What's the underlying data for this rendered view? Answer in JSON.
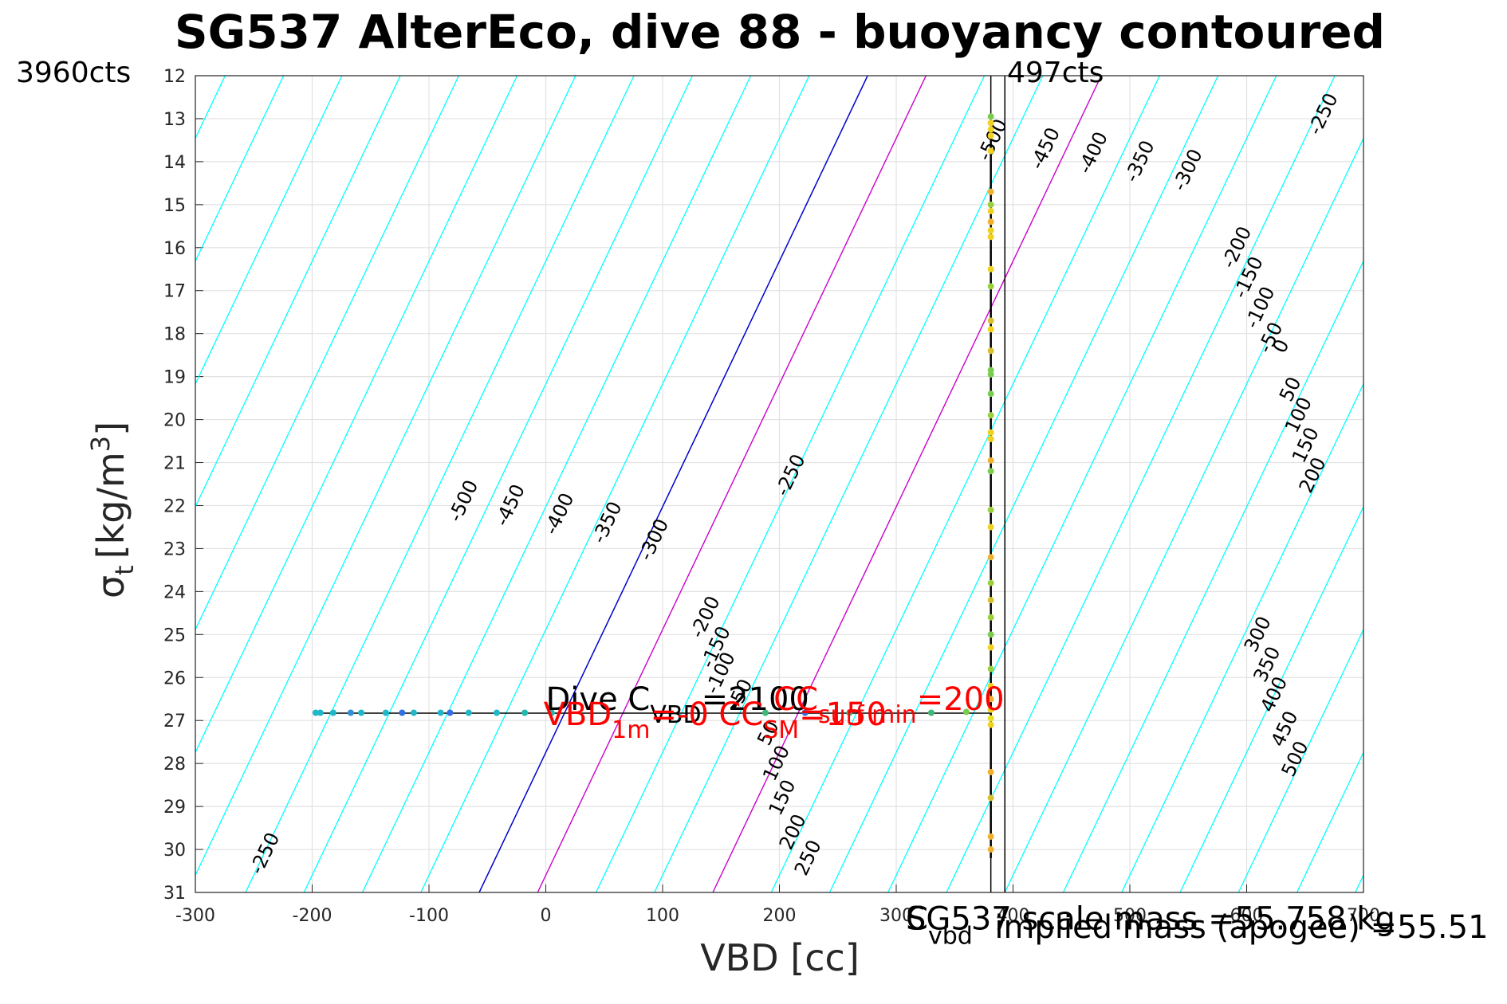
{
  "chart_data": {
    "type": "line",
    "title": "SG537 AlterEco, dive 88 - buoyancy contoured",
    "xlabel": "VBD [cc]",
    "ylabel_base": "σ",
    "ylabel_sub": "t",
    "ylabel_unit": "[kg/m",
    "ylabel_sup": "3",
    "ylabel_end": "]",
    "xlim": [
      -300,
      700
    ],
    "ylim": [
      12,
      31
    ],
    "y_reversed": true,
    "grid": true,
    "xticks": [
      -300,
      -200,
      -100,
      0,
      100,
      200,
      300,
      400,
      500,
      600,
      700
    ],
    "yticks": [
      12,
      13,
      14,
      15,
      16,
      17,
      18,
      19,
      20,
      21,
      22,
      23,
      24,
      25,
      26,
      27,
      28,
      29,
      30,
      31
    ],
    "counts_left": "3960cts",
    "counts_right": "497cts",
    "contour_levels": [
      -500,
      -450,
      -400,
      -350,
      -300,
      -250,
      -200,
      -150,
      -100,
      -50,
      0,
      50,
      100,
      150,
      200,
      250,
      300,
      350,
      400,
      450,
      500
    ],
    "contour_slope_cc_per_sigma": 17.5,
    "contour_spacing_cc": 50,
    "contour_zero_at_x": -57,
    "contour_zero_at_y": 31,
    "colors": {
      "contour": "#00ffff",
      "zero": "#0000cd",
      "highlight": "#cc00cc",
      "annotation": "#ff0000",
      "ink": "#000000"
    },
    "highlight_levels": [
      50,
      200
    ],
    "contour_labels": [
      {
        "level": -500,
        "x": -70,
        "y": 21.9
      },
      {
        "level": -450,
        "x": -30,
        "y": 22.0
      },
      {
        "level": -400,
        "x": 12,
        "y": 22.2
      },
      {
        "level": -350,
        "x": 53,
        "y": 22.4
      },
      {
        "level": -300,
        "x": 93,
        "y": 22.8
      },
      {
        "level": -250,
        "x": 210,
        "y": 21.3
      },
      {
        "level": -250,
        "x": -240,
        "y": 30.1
      },
      {
        "level": -200,
        "x": 137,
        "y": 24.6
      },
      {
        "level": -150,
        "x": 146,
        "y": 25.3
      },
      {
        "level": -100,
        "x": 150,
        "y": 25.9
      },
      {
        "level": -50,
        "x": 167,
        "y": 26.4
      },
      {
        "level": 50,
        "x": 191,
        "y": 27.3
      },
      {
        "level": 100,
        "x": 198,
        "y": 28.0
      },
      {
        "level": 150,
        "x": 203,
        "y": 28.8
      },
      {
        "level": 200,
        "x": 212,
        "y": 29.6
      },
      {
        "level": 250,
        "x": 225,
        "y": 30.2
      },
      {
        "level": -500,
        "x": 383,
        "y": 13.5
      },
      {
        "level": -450,
        "x": 428,
        "y": 13.7
      },
      {
        "level": -400,
        "x": 469,
        "y": 13.8
      },
      {
        "level": -350,
        "x": 509,
        "y": 14.0
      },
      {
        "level": -300,
        "x": 550,
        "y": 14.2
      },
      {
        "level": -250,
        "x": 666,
        "y": 12.9
      },
      {
        "level": -200,
        "x": 592,
        "y": 16.0
      },
      {
        "level": -150,
        "x": 602,
        "y": 16.7
      },
      {
        "level": -100,
        "x": 612,
        "y": 17.4
      },
      {
        "level": -50,
        "x": 621,
        "y": 18.1
      },
      {
        "level": 0,
        "x": 630,
        "y": 18.3
      },
      {
        "level": 50,
        "x": 638,
        "y": 19.3
      },
      {
        "level": 100,
        "x": 645,
        "y": 19.9
      },
      {
        "level": 150,
        "x": 651,
        "y": 20.6
      },
      {
        "level": 200,
        "x": 657,
        "y": 21.3
      },
      {
        "level": 300,
        "x": 610,
        "y": 25.0
      },
      {
        "level": 350,
        "x": 618,
        "y": 25.7
      },
      {
        "level": 400,
        "x": 624,
        "y": 26.4
      },
      {
        "level": 450,
        "x": 633,
        "y": 27.2
      },
      {
        "level": 500,
        "x": 642,
        "y": 27.9
      }
    ],
    "vertical_lines": [
      {
        "x": 381
      },
      {
        "x": 393
      }
    ],
    "horizontal_segment": {
      "x1": -197,
      "x2": 381,
      "y": 26.83
    },
    "data_points": [
      {
        "x": -197,
        "y": 26.82,
        "c": "#20b8c8"
      },
      {
        "x": -193,
        "y": 26.82,
        "c": "#20b8c8"
      },
      {
        "x": -182,
        "y": 26.82,
        "c": "#20b8c8"
      },
      {
        "x": -167,
        "y": 26.82,
        "c": "#3090d8"
      },
      {
        "x": -158,
        "y": 26.82,
        "c": "#20b8c8"
      },
      {
        "x": -137,
        "y": 26.82,
        "c": "#20b8c8"
      },
      {
        "x": -123,
        "y": 26.82,
        "c": "#3070e0"
      },
      {
        "x": -113,
        "y": 26.82,
        "c": "#20b8c8"
      },
      {
        "x": -90,
        "y": 26.82,
        "c": "#20b8c8"
      },
      {
        "x": -82,
        "y": 26.82,
        "c": "#3070e0"
      },
      {
        "x": -66,
        "y": 26.82,
        "c": "#20b8c8"
      },
      {
        "x": -42,
        "y": 26.82,
        "c": "#20b8c8"
      },
      {
        "x": -18,
        "y": 26.82,
        "c": "#20b8b0"
      },
      {
        "x": 5,
        "y": 26.82,
        "c": "#20b8b0"
      },
      {
        "x": 188,
        "y": 26.82,
        "c": "#3fb87a"
      },
      {
        "x": 222,
        "y": 26.82,
        "c": "#3070e0"
      },
      {
        "x": 260,
        "y": 26.82,
        "c": "#3fb87a"
      },
      {
        "x": 330,
        "y": 26.82,
        "c": "#3fb87a"
      },
      {
        "x": 360,
        "y": 26.8,
        "c": "#7acc50"
      },
      {
        "x": 381,
        "y": 12.95,
        "c": "#7acc50"
      },
      {
        "x": 381,
        "y": 13.1,
        "c": "#f0d020"
      },
      {
        "x": 381,
        "y": 13.25,
        "c": "#f0d020"
      },
      {
        "x": 381,
        "y": 13.4,
        "c": "#f0d020"
      },
      {
        "x": 381,
        "y": 13.75,
        "c": "#f0d020"
      },
      {
        "x": 381,
        "y": 14.7,
        "c": "#f0b030"
      },
      {
        "x": 381,
        "y": 15.0,
        "c": "#9ad040"
      },
      {
        "x": 381,
        "y": 15.15,
        "c": "#f0d020"
      },
      {
        "x": 381,
        "y": 15.4,
        "c": "#f0b030"
      },
      {
        "x": 381,
        "y": 15.6,
        "c": "#f0d020"
      },
      {
        "x": 381,
        "y": 15.75,
        "c": "#f0d020"
      },
      {
        "x": 381,
        "y": 16.5,
        "c": "#f0d020"
      },
      {
        "x": 381,
        "y": 16.9,
        "c": "#9ad040"
      },
      {
        "x": 381,
        "y": 17.7,
        "c": "#d8c030"
      },
      {
        "x": 381,
        "y": 17.9,
        "c": "#f0d020"
      },
      {
        "x": 381,
        "y": 18.4,
        "c": "#d8c030"
      },
      {
        "x": 381,
        "y": 18.85,
        "c": "#7acc50"
      },
      {
        "x": 381,
        "y": 18.95,
        "c": "#7acc50"
      },
      {
        "x": 381,
        "y": 19.4,
        "c": "#7acc50"
      },
      {
        "x": 381,
        "y": 19.9,
        "c": "#9ad040"
      },
      {
        "x": 381,
        "y": 20.3,
        "c": "#f0d020"
      },
      {
        "x": 381,
        "y": 20.45,
        "c": "#f0d020"
      },
      {
        "x": 381,
        "y": 20.95,
        "c": "#f0b030"
      },
      {
        "x": 381,
        "y": 21.2,
        "c": "#7acc50"
      },
      {
        "x": 381,
        "y": 22.1,
        "c": "#9ad040"
      },
      {
        "x": 381,
        "y": 22.5,
        "c": "#f0d020"
      },
      {
        "x": 381,
        "y": 23.2,
        "c": "#f0b030"
      },
      {
        "x": 381,
        "y": 23.8,
        "c": "#9ad040"
      },
      {
        "x": 381,
        "y": 24.2,
        "c": "#d8c030"
      },
      {
        "x": 381,
        "y": 24.6,
        "c": "#9ad040"
      },
      {
        "x": 381,
        "y": 25.0,
        "c": "#7acc50"
      },
      {
        "x": 381,
        "y": 25.3,
        "c": "#f0d020"
      },
      {
        "x": 381,
        "y": 25.8,
        "c": "#9ad040"
      },
      {
        "x": 381,
        "y": 26.2,
        "c": "#f0d020"
      },
      {
        "x": 381,
        "y": 26.5,
        "c": "#f0b030"
      },
      {
        "x": 381,
        "y": 26.75,
        "c": "#f0d020"
      },
      {
        "x": 381,
        "y": 26.95,
        "c": "#e8e020"
      },
      {
        "x": 381,
        "y": 27.1,
        "c": "#f0d020"
      },
      {
        "x": 381,
        "y": 28.2,
        "c": "#f0b030"
      },
      {
        "x": 381,
        "y": 28.8,
        "c": "#d8c030"
      },
      {
        "x": 381,
        "y": 29.7,
        "c": "#f0b030"
      },
      {
        "x": 381,
        "y": 30.0,
        "c": "#f0b030"
      }
    ],
    "annotations": [
      {
        "text": "Dive C",
        "sub": "VBD",
        "end": "=2100",
        "color": "ink",
        "x": 0,
        "y": 26.5
      },
      {
        "text": "VBD",
        "sub": "1m",
        "end": "=-0",
        "color": "annotation",
        "x": -2,
        "y": 26.85
      },
      {
        "text": "CC",
        "sub": "SM",
        "end": "=150",
        "color": "annotation",
        "x": 148,
        "y": 26.85
      },
      {
        "text": "CC",
        "sub": "surf min",
        "end": "=200",
        "color": "annotation",
        "x": 195,
        "y": 26.5
      }
    ],
    "bottom_texts": [
      {
        "text": "SG537 scale mass =55.758 kg",
        "x": 300,
        "y": 31.6
      },
      {
        "text": "C",
        "sub": "vbd",
        "x": 300,
        "y": 31.6
      },
      {
        "text": "implied mass (apogee) =55.51",
        "x": 376,
        "y": 31.8
      }
    ]
  }
}
